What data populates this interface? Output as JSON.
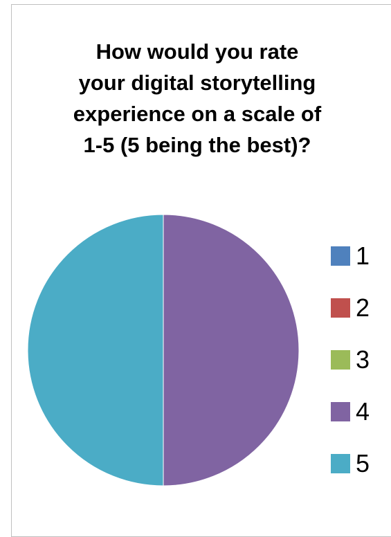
{
  "chart_data": {
    "type": "pie",
    "title": "How would you rate your digital storytelling experience on a scale of 1-5 (5 being the best)?",
    "title_lines": [
      "How would you rate",
      "your digital storytelling",
      "experience on a scale of",
      "1-5 (5 being the best)?"
    ],
    "categories": [
      "1",
      "2",
      "3",
      "4",
      "5"
    ],
    "values": [
      0,
      0,
      0,
      1,
      1
    ],
    "colors": [
      "#4f81bd",
      "#c0504d",
      "#9bbb59",
      "#8064a2",
      "#4bacc6"
    ],
    "legend_position": "right"
  }
}
